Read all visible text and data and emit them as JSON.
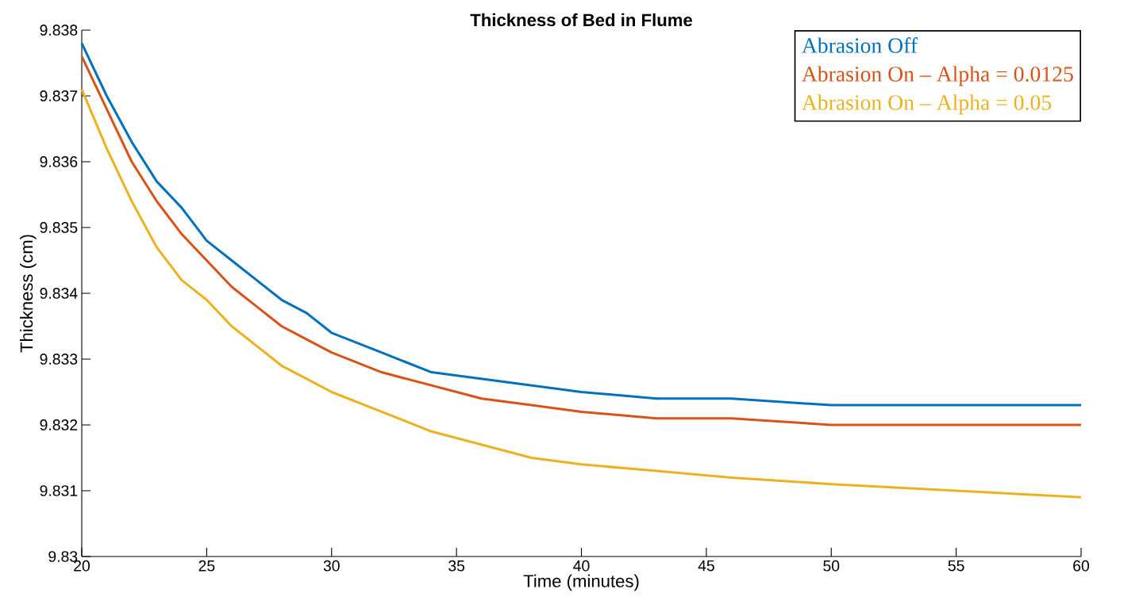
{
  "chart_data": {
    "type": "line",
    "title": "Thickness of Bed in Flume",
    "xlabel": "Time (minutes)",
    "ylabel": "Thickness (cm)",
    "x": [
      20,
      21,
      22,
      23,
      24,
      25,
      26,
      27,
      28,
      29,
      30,
      32,
      34,
      36,
      38,
      40,
      43,
      46,
      50,
      55,
      60
    ],
    "series": [
      {
        "name": "Abrasion Off",
        "color": "#0072bd",
        "values": [
          9.8378,
          9.837,
          9.8363,
          9.8357,
          9.8353,
          9.8348,
          9.8345,
          9.8342,
          9.8339,
          9.8337,
          9.8334,
          9.8331,
          9.8328,
          9.8327,
          9.8326,
          9.8325,
          9.8324,
          9.8324,
          9.8323,
          9.8323,
          9.8323
        ]
      },
      {
        "name": "Abrasion On – Alpha = 0.0125",
        "color": "#d95319",
        "values": [
          9.8376,
          9.8368,
          9.836,
          9.8354,
          9.8349,
          9.8345,
          9.8341,
          9.8338,
          9.8335,
          9.8333,
          9.8331,
          9.8328,
          9.8326,
          9.8324,
          9.8323,
          9.8322,
          9.8321,
          9.8321,
          9.832,
          9.832,
          9.832
        ]
      },
      {
        "name": "Abrasion On – Alpha = 0.05",
        "color": "#edb120",
        "values": [
          9.8371,
          9.8362,
          9.8354,
          9.8347,
          9.8342,
          9.8339,
          9.8335,
          9.8332,
          9.8329,
          9.8327,
          9.8325,
          9.8322,
          9.8319,
          9.8317,
          9.8315,
          9.8314,
          9.8313,
          9.8312,
          9.8311,
          9.831,
          9.8309
        ]
      }
    ],
    "xlim": [
      20,
      60
    ],
    "xticks": [
      20,
      25,
      30,
      35,
      40,
      45,
      50,
      55,
      60
    ],
    "ylim": [
      9.83,
      9.838
    ],
    "yticks": [
      9.83,
      9.831,
      9.832,
      9.833,
      9.834,
      9.835,
      9.836,
      9.837,
      9.838
    ],
    "legend": "top right"
  }
}
